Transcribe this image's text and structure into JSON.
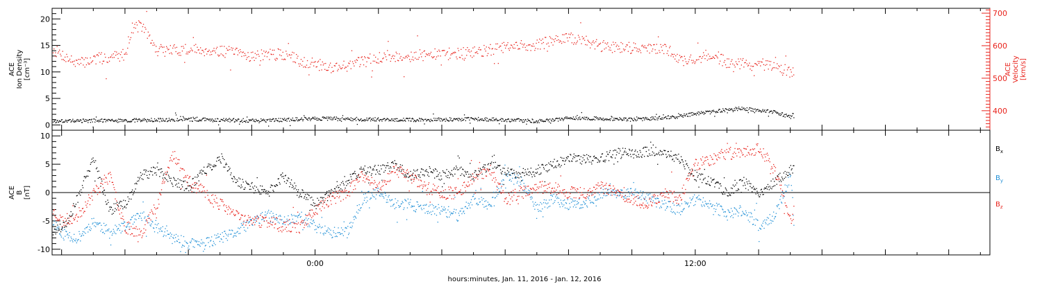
{
  "xaxis": {
    "title": "hours:minutes, Jan. 11, 2016 - Jan. 12, 2016",
    "labels": [
      {
        "hour": 0,
        "text": "0:00"
      },
      {
        "hour": 12,
        "text": "12:00"
      }
    ],
    "range_hours": [
      -8.3,
      21.3
    ],
    "tick_every_hours": 2
  },
  "colors": {
    "axis": "#000000",
    "density": "#000000",
    "velocity": "#e8221b",
    "bx": "#000000",
    "by": "#1f8fd6",
    "bz": "#e8221b"
  },
  "chart_data": [
    {
      "type": "scatter",
      "panel": "top",
      "ylabel_left": [
        "ACE",
        "Ion Density",
        "[cm⁻³]"
      ],
      "ylabel_right": [
        "ACE",
        "Velocity",
        "[km/s]"
      ],
      "left_axis": {
        "ylim": [
          -1,
          22
        ],
        "ticks": [
          0,
          5,
          10,
          15,
          20
        ],
        "color": "#000000"
      },
      "right_axis": {
        "ylim": [
          340,
          715
        ],
        "ticks": [
          400,
          500,
          600,
          700
        ],
        "color": "#e8221b"
      },
      "data_end_hour": 15.1,
      "series": [
        {
          "name": "",
          "axis": "left",
          "color": "#000000",
          "x": [
            -8.3,
            -7,
            -6,
            -5,
            -4,
            -3,
            -2,
            -1,
            0,
            1,
            2,
            3,
            4,
            5,
            6,
            7,
            8,
            9,
            10,
            11,
            11.5,
            12,
            12.5,
            13,
            13.5,
            14,
            14.5,
            15,
            15.1
          ],
          "values": [
            0.8,
            0.9,
            0.9,
            1.0,
            1.1,
            1.0,
            0.9,
            1.0,
            1.3,
            1.2,
            1.1,
            1.0,
            1.1,
            1.2,
            1.0,
            0.8,
            1.3,
            1.3,
            1.1,
            1.4,
            1.7,
            2.2,
            2.5,
            3.0,
            3.2,
            2.8,
            2.5,
            1.5,
            2.3
          ]
        },
        {
          "name": "",
          "axis": "right",
          "color": "#e8221b",
          "x": [
            -8.3,
            -7.5,
            -7,
            -6.5,
            -6,
            -5.8,
            -5.5,
            -5,
            -4,
            -3,
            -2,
            -1,
            -0.5,
            0,
            0.5,
            1,
            2,
            3,
            4,
            5,
            6,
            7,
            7.5,
            8,
            8.5,
            9,
            10,
            11,
            11.3,
            11.5,
            12,
            12.5,
            13,
            13.5,
            14,
            14.5,
            15,
            15.1
          ],
          "values": [
            590,
            545,
            560,
            565,
            575,
            655,
            665,
            585,
            590,
            585,
            570,
            575,
            555,
            545,
            535,
            540,
            565,
            570,
            575,
            580,
            595,
            605,
            615,
            625,
            615,
            600,
            595,
            590,
            580,
            555,
            560,
            575,
            550,
            545,
            540,
            535,
            520,
            520
          ]
        }
      ]
    },
    {
      "type": "scatter",
      "panel": "bottom",
      "ylabel_left": [
        "ACE",
        "B",
        "[nT]"
      ],
      "ylim": [
        -11,
        11
      ],
      "ticks": [
        -10,
        -5,
        0,
        5,
        10
      ],
      "zero_line": true,
      "data_end_hour": 15.1,
      "series": [
        {
          "name": "Bₓ",
          "color": "#000000",
          "x": [
            -8.3,
            -7.8,
            -7.3,
            -7,
            -6.5,
            -6,
            -5.5,
            -5,
            -4.5,
            -4,
            -3.5,
            -3,
            -2.5,
            -2,
            -1.5,
            -1,
            -0.5,
            0,
            0.5,
            1,
            1.5,
            2,
            2.5,
            3,
            3.5,
            4,
            4.5,
            5,
            5.5,
            6,
            6.5,
            7,
            7.5,
            8,
            8.5,
            9,
            9.5,
            10,
            10.5,
            11,
            11.5,
            12,
            12.5,
            13,
            13.5,
            14,
            14.5,
            15,
            15.1
          ],
          "values": [
            -7,
            -5,
            2,
            6,
            -3,
            -2,
            3,
            4,
            2,
            1,
            4,
            6,
            2,
            1,
            0,
            3,
            0,
            -2,
            0,
            2,
            4,
            4,
            5,
            3,
            4,
            3,
            4,
            3,
            5,
            4,
            3,
            4,
            5,
            6,
            6,
            6,
            7,
            7,
            7.3,
            7,
            6,
            3,
            2,
            0,
            2,
            0,
            2,
            4,
            4
          ]
        },
        {
          "name": "B_y",
          "color": "#1f8fd6",
          "x": [
            -8.3,
            -8,
            -7.5,
            -7,
            -6.5,
            -6,
            -5.5,
            -5,
            -4.5,
            -4,
            -3.5,
            -3,
            -2.5,
            -2,
            -1.5,
            -1,
            -0.5,
            0,
            0.5,
            1,
            1.5,
            2,
            2.5,
            3,
            3.5,
            4,
            4.5,
            5,
            5.5,
            6,
            6.5,
            7,
            7.5,
            8,
            8.5,
            9,
            9.5,
            10,
            10.5,
            11,
            11.5,
            12,
            12.5,
            13,
            13.5,
            14,
            14.5,
            15,
            15.1
          ],
          "values": [
            -5,
            -7,
            -8,
            -5,
            -7,
            -6,
            -4,
            -6,
            -8,
            -9,
            -9,
            -8,
            -7,
            -5,
            -4,
            -5,
            -4,
            -6,
            -7,
            -7,
            -1,
            0,
            -2,
            -2,
            -3,
            -3,
            -4,
            -1,
            -2,
            3,
            2,
            -3,
            -1,
            -2,
            -2,
            0,
            0,
            0,
            -1,
            -2,
            -3,
            -1,
            -2,
            -4,
            -3,
            -6,
            -4,
            3,
            -5
          ]
        },
        {
          "name": "B_z",
          "color": "#e8221b",
          "x": [
            -8.3,
            -8,
            -7.5,
            -7,
            -6.5,
            -6,
            -5.5,
            -5,
            -4.5,
            -4,
            -3.5,
            -3,
            -2.5,
            -2,
            -1.5,
            -1,
            -0.5,
            0,
            0.5,
            1,
            1.5,
            2,
            2.5,
            3,
            3.5,
            4,
            4.5,
            5,
            5.5,
            6,
            6.5,
            7,
            7.5,
            8,
            8.5,
            9,
            9.5,
            10,
            10.5,
            11,
            11.5,
            12,
            12.5,
            13,
            13.5,
            14,
            14.5,
            15,
            15.1
          ],
          "values": [
            -3,
            -5,
            -4,
            0,
            3,
            -6,
            -7,
            -2,
            7,
            2,
            0,
            -2,
            -4,
            -5,
            -5,
            -6,
            -6,
            -3,
            -1,
            0,
            3,
            1,
            4,
            3,
            1,
            0,
            0,
            3,
            4,
            -1,
            0,
            1,
            1,
            0,
            0,
            1,
            0,
            -1,
            -2,
            0,
            -1,
            5,
            6,
            7,
            7,
            8,
            4,
            -5,
            -3
          ]
        }
      ],
      "legend": {
        "placement": "right",
        "entries": [
          "B",
          "B",
          "B"
        ],
        "subscripts": [
          "x",
          "y",
          "z"
        ]
      }
    }
  ]
}
